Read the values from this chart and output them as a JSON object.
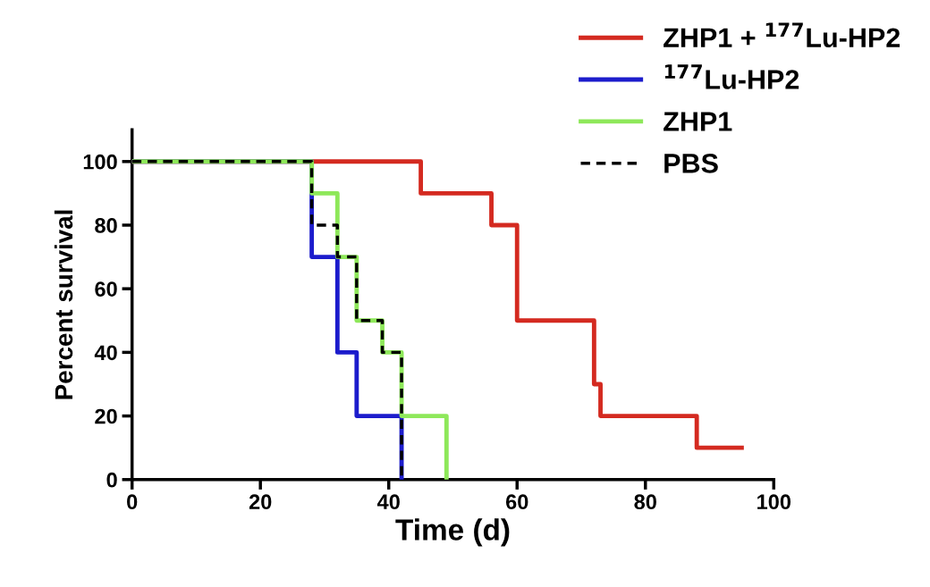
{
  "chart_data": {
    "type": "step",
    "xlabel": "Time (d)",
    "ylabel": "Percent survival",
    "xlim": [
      0,
      100
    ],
    "xticks": [
      0,
      20,
      40,
      60,
      80,
      100
    ],
    "ylim": [
      0,
      110
    ],
    "yticks": [
      0,
      20,
      40,
      60,
      80,
      100
    ],
    "grid": false,
    "legend": "top right",
    "series": [
      {
        "name": "ZHP1 + $^{177}$Lu-HP2",
        "color": "#d42a20",
        "line_style": "solid",
        "x": [
          0,
          45,
          56,
          60,
          72,
          73,
          88,
          95
        ],
        "values": [
          100,
          90,
          80,
          50,
          30,
          20,
          10,
          10
        ]
      },
      {
        "name": "$^{177}$Lu-HP2",
        "color": "#1c1ccc",
        "line_style": "solid",
        "x": [
          0,
          28,
          32,
          35,
          42
        ],
        "values": [
          100,
          70,
          40,
          20,
          0
        ]
      },
      {
        "name": "ZHP1",
        "color": "#8ee85a",
        "line_style": "solid",
        "x": [
          0,
          28,
          32,
          35,
          39,
          42,
          49
        ],
        "values": [
          100,
          90,
          70,
          50,
          40,
          20,
          0
        ]
      },
      {
        "name": "PBS",
        "color": "#000000",
        "line_style": "dashed",
        "x": [
          0,
          28,
          32,
          35,
          39,
          42
        ],
        "values": [
          100,
          80,
          70,
          50,
          40,
          0
        ]
      }
    ]
  }
}
